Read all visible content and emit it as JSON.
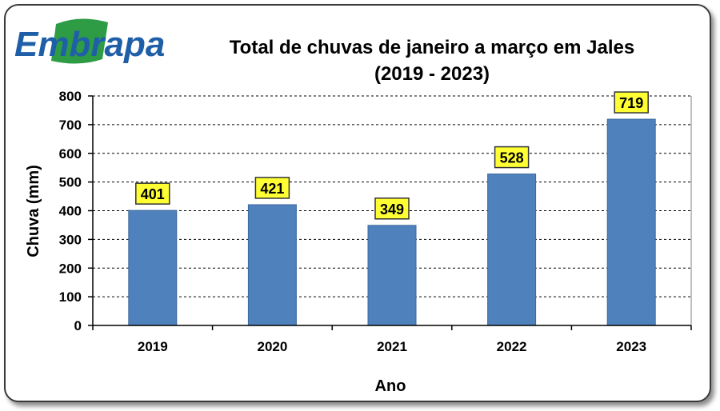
{
  "logo": {
    "text": "Embrapa",
    "color": "#1f5fa8",
    "leaf_color": "#2e9b45"
  },
  "colors": {
    "bar": "#4f81bd",
    "label_bg": "#ffff33",
    "grid": "#000000"
  },
  "chart_data": {
    "type": "bar",
    "title": "Total de chuvas de janeiro a março em Jales",
    "subtitle": "(2019 - 2023)",
    "xlabel": "Ano",
    "ylabel": "Chuva (mm)",
    "categories": [
      "2019",
      "2020",
      "2021",
      "2022",
      "2023"
    ],
    "values": [
      401,
      421,
      349,
      528,
      719
    ],
    "data_labels": [
      "401",
      "421",
      "349",
      "528",
      "719"
    ],
    "ylim": [
      0,
      800
    ],
    "yticks": [
      0,
      100,
      200,
      300,
      400,
      500,
      600,
      700,
      800
    ],
    "grid": "horizontal dashed",
    "legend": "none"
  }
}
